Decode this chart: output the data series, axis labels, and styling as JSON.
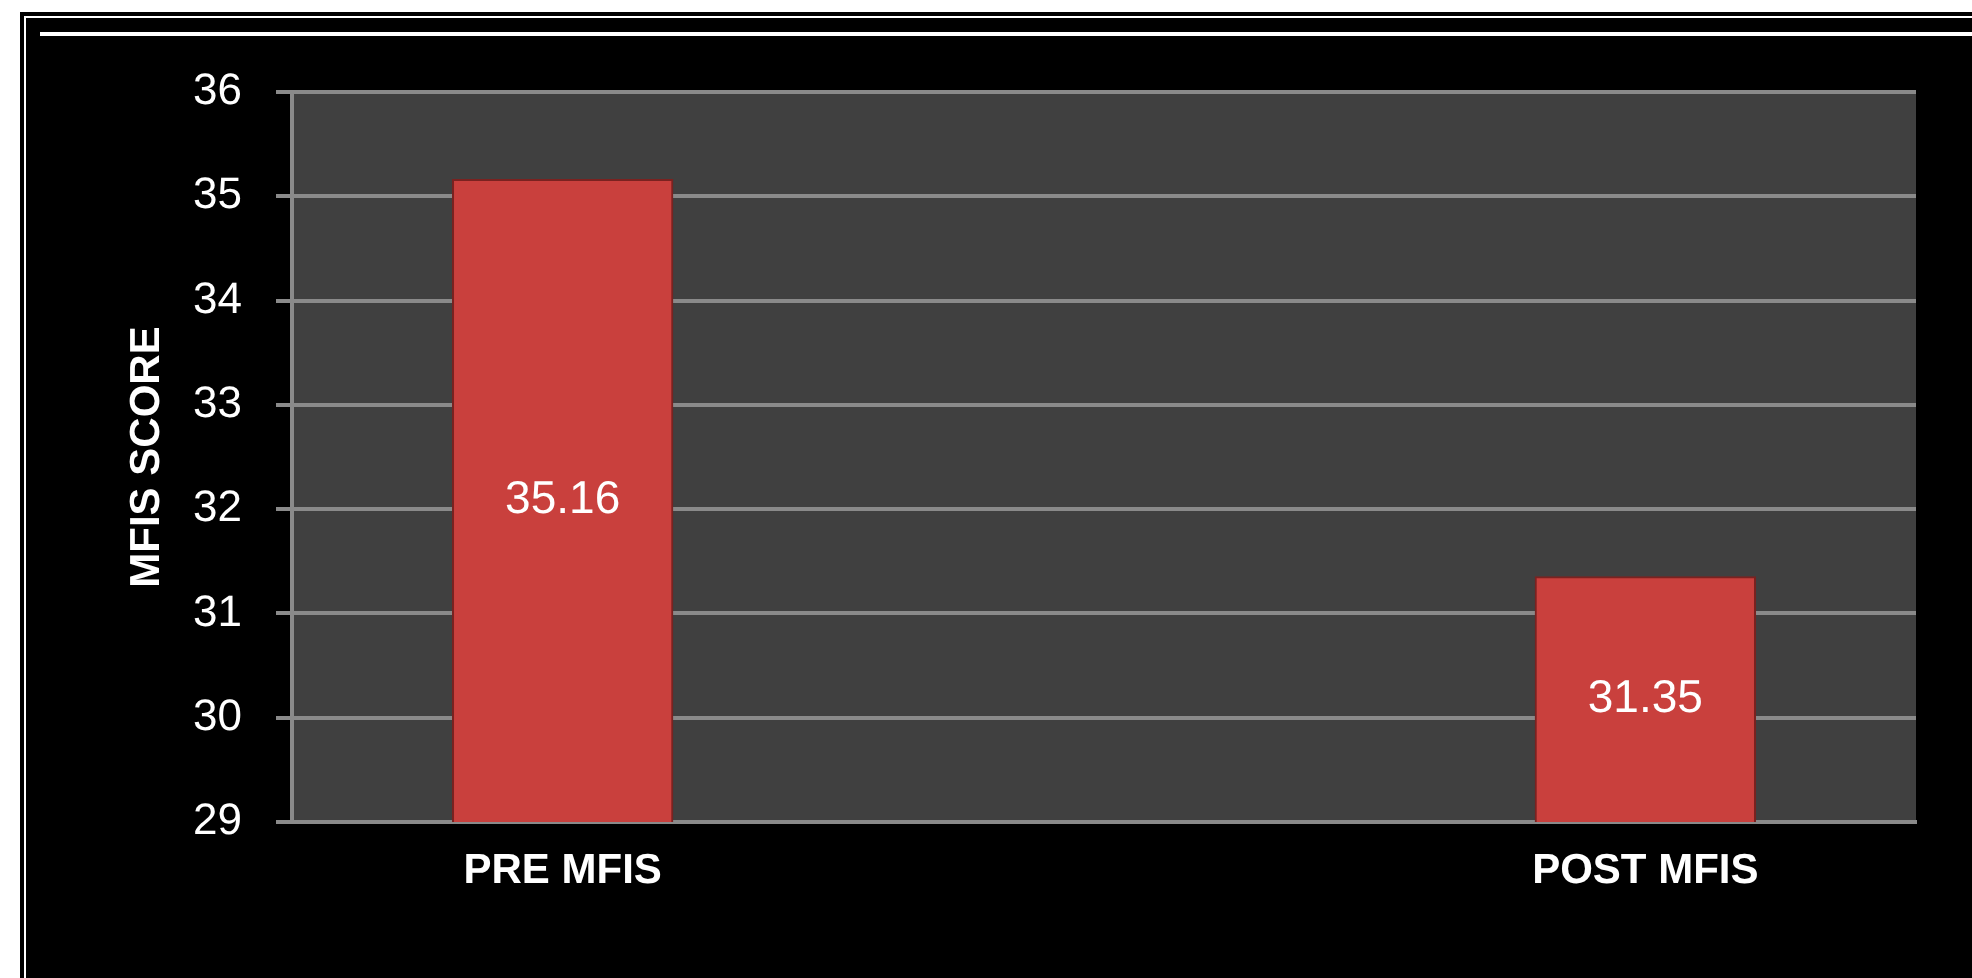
{
  "chart_data": {
    "type": "bar",
    "ylabel": "MFIS SCORE",
    "categories": [
      "PRE MFIS",
      "POST MFIS"
    ],
    "values": [
      35.16,
      31.35
    ],
    "color": "#c9403d",
    "ylim": [
      29,
      36
    ],
    "yticks": [
      29,
      30,
      31,
      32,
      33,
      34,
      35,
      36
    ],
    "grid": "y",
    "data_labels": true
  }
}
